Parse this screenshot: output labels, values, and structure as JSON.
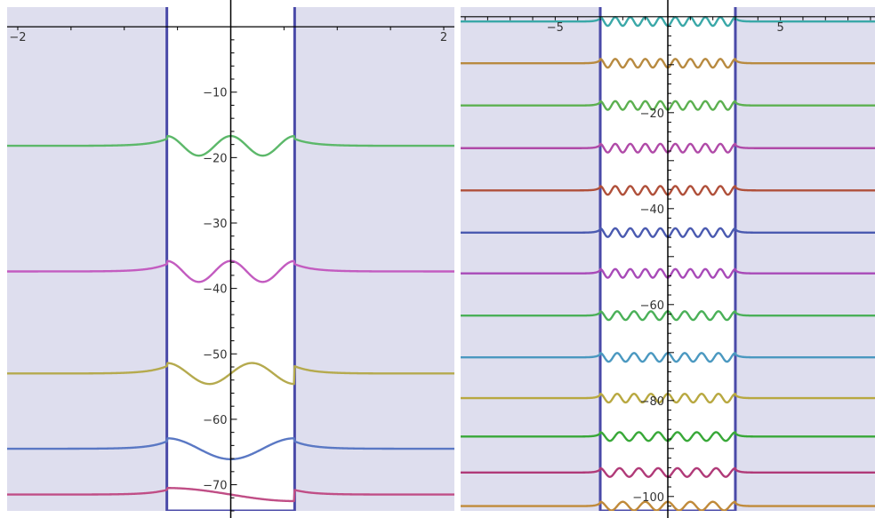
{
  "chart_data": [
    {
      "type": "line",
      "title": "",
      "xlabel": "",
      "ylabel": "",
      "xlim": [
        -2.1,
        2.1
      ],
      "ylim": [
        -74,
        3
      ],
      "well": {
        "x_range": [
          -0.6,
          0.6
        ],
        "depth": -74,
        "fill_color": "#dedeee",
        "outline_color": "#4a4aa8"
      },
      "x_tick_labels": [
        -2,
        2
      ],
      "y_tick_labels": [
        -10,
        -20,
        -30,
        -40,
        -50,
        -60,
        -70
      ],
      "series": [
        {
          "level": -18.2,
          "amplitude": 1.5,
          "waves": 2,
          "color": "#5cb86a"
        },
        {
          "level": -37.4,
          "amplitude": 1.6,
          "waves": 2,
          "color": "#c35cc0"
        },
        {
          "level": -53.0,
          "amplitude": 1.6,
          "waves": 1.5,
          "color": "#b5aa4e"
        },
        {
          "level": -64.5,
          "amplitude": 1.6,
          "waves": 1,
          "color": "#5a78c4"
        },
        {
          "level": -71.5,
          "amplitude": 1.0,
          "waves": 0.5,
          "color": "#c04e86"
        }
      ]
    },
    {
      "type": "line",
      "title": "",
      "xlabel": "",
      "ylabel": "",
      "xlim": [
        -9.2,
        9.2
      ],
      "ylim": [
        -103,
        2
      ],
      "well": {
        "x_range": [
          -3,
          3
        ],
        "depth": -103,
        "fill_color": "#dedeee",
        "outline_color": "#4a4aa8"
      },
      "x_tick_labels": [
        -5,
        5
      ],
      "y_tick_labels": [
        -20,
        -40,
        -60,
        -80,
        -100
      ],
      "series": [
        {
          "level": -1.0,
          "amplitude": 0.9,
          "waves": 9,
          "color": "#3aa8a8"
        },
        {
          "level": -9.7,
          "amplitude": 0.9,
          "waves": 9,
          "color": "#b88a40"
        },
        {
          "level": -18.5,
          "amplitude": 0.9,
          "waves": 9,
          "color": "#5cb050"
        },
        {
          "level": -27.4,
          "amplitude": 0.9,
          "waves": 9,
          "color": "#b04aa8"
        },
        {
          "level": -36.2,
          "amplitude": 0.9,
          "waves": 9,
          "color": "#b0503a"
        },
        {
          "level": -45.0,
          "amplitude": 0.9,
          "waves": 9,
          "color": "#4a5ab0"
        },
        {
          "level": -53.5,
          "amplitude": 0.9,
          "waves": 9,
          "color": "#a84ab8"
        },
        {
          "level": -62.3,
          "amplitude": 0.9,
          "waves": 8,
          "color": "#4ab058"
        },
        {
          "level": -71.0,
          "amplitude": 0.9,
          "waves": 8,
          "color": "#4a98c0"
        },
        {
          "level": -79.5,
          "amplitude": 0.9,
          "waves": 8,
          "color": "#b8a840"
        },
        {
          "level": -87.5,
          "amplitude": 0.9,
          "waves": 7,
          "color": "#38a838"
        },
        {
          "level": -95.0,
          "amplitude": 0.9,
          "waves": 7,
          "color": "#b03a78"
        },
        {
          "level": -102.0,
          "amplitude": 0.9,
          "waves": 6,
          "color": "#c08a3a"
        }
      ]
    }
  ]
}
